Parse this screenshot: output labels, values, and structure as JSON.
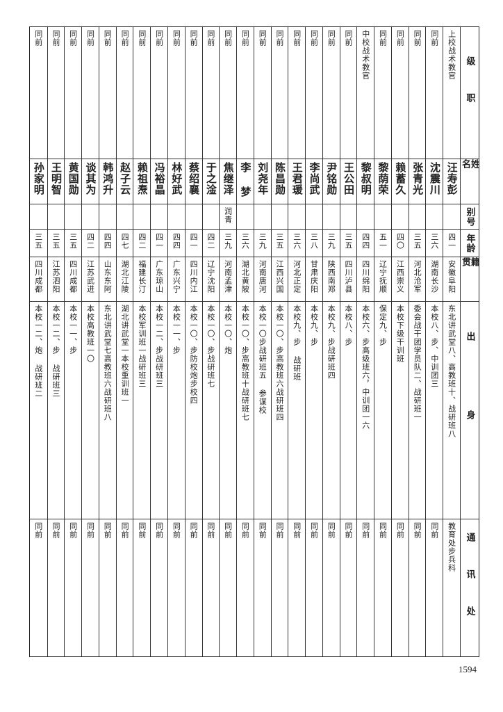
{
  "headers": {
    "rank": "级职",
    "name": "姓名",
    "alias": "别号",
    "age": "年龄",
    "native": "籍贯",
    "background": "出身",
    "address": "通讯处"
  },
  "rows": [
    {
      "rank": "上校战术教官",
      "name": "汪寿彭",
      "alias": "",
      "age": "四一",
      "native": "安徽阜阳",
      "background": "东北讲武堂八、高教班十、战研班八",
      "address": "教育处步兵科"
    },
    {
      "rank": "同前",
      "name": "沈震川",
      "alias": "",
      "age": "三六",
      "native": "湖南长沙",
      "background": "本校八、步、中训团三",
      "address": "同前"
    },
    {
      "rank": "同前",
      "name": "张青光",
      "alias": "",
      "age": "三五",
      "native": "河北沧军",
      "background": "委会战干团学员队二、战研班一",
      "address": "同前"
    },
    {
      "rank": "同前",
      "name": "赖蓄久",
      "alias": "",
      "age": "四〇",
      "native": "江西崇义",
      "background": "本校下级干训班",
      "address": "同前"
    },
    {
      "rank": "同前",
      "name": "黎荫荣",
      "alias": "",
      "age": "五一",
      "native": "辽宁抚顺",
      "background": "保定九、步",
      "address": "同前"
    },
    {
      "rank": "中校战术教官",
      "name": "黎叔明",
      "alias": "",
      "age": "四四",
      "native": "四川绵阳",
      "background": "本校六、步高级班六，中训团一六",
      "address": "同前"
    },
    {
      "rank": "同前",
      "name": "王公田",
      "alias": "",
      "age": "三五",
      "native": "四川泸县",
      "background": "本校八、步",
      "address": "同前"
    },
    {
      "rank": "同前",
      "name": "尹铭勋",
      "alias": "",
      "age": "三九",
      "native": "陕西南郑",
      "background": "本校九、步战研班四",
      "address": "同前"
    },
    {
      "rank": "同前",
      "name": "李尚武",
      "alias": "",
      "age": "三八",
      "native": "甘肃庆阳",
      "background": "本校九、步",
      "address": "同前"
    },
    {
      "rank": "同前",
      "name": "王君瑗",
      "alias": "",
      "age": "三六",
      "native": "河北正定",
      "background": "本校九、步 战研班",
      "address": "同前"
    },
    {
      "rank": "同前",
      "name": "陈昌勋",
      "alias": "",
      "age": "三五",
      "native": "江西兴国",
      "background": "本校一〇、步高教班六战研班四",
      "address": "同前"
    },
    {
      "rank": "同前",
      "name": "刘尧年",
      "alias": "",
      "age": "三九",
      "native": "河南唐河",
      "background": "本校一〇步战研班五 参谋校",
      "address": "同前"
    },
    {
      "rank": "同前",
      "name": "李 梦",
      "alias": "",
      "age": "三六",
      "native": "湖北黄陂",
      "background": "本校一〇、步高教班十战研班七",
      "address": "同前"
    },
    {
      "rank": "同前",
      "name": "焦继泽",
      "alias": "润青",
      "age": "三九",
      "native": "河南孟津",
      "background": "本校一〇、炮",
      "address": "同前"
    },
    {
      "rank": "同前",
      "name": "于之淦",
      "alias": "",
      "age": "四二",
      "native": "辽宁沈阳",
      "background": "本校一〇、步战研班七",
      "address": "同前"
    },
    {
      "rank": "同前",
      "name": "蔡绍襄",
      "alias": "",
      "age": "四一",
      "native": "四川内江",
      "background": "本校一〇、步防校炮步校四",
      "address": "同前"
    },
    {
      "rank": "同前",
      "name": "林好武",
      "alias": "",
      "age": "四四",
      "native": "广东兴宁",
      "background": "本校一一、步",
      "address": "同前"
    },
    {
      "rank": "同前",
      "name": "冯裕晶",
      "alias": "",
      "age": "四一",
      "native": "广东琼山",
      "background": "本校一二、步战研班三",
      "address": "同前"
    },
    {
      "rank": "同前",
      "name": "赖祖焘",
      "alias": "",
      "age": "四二",
      "native": "福建长汀",
      "background": "本校军训班一战研班三",
      "address": "同前"
    },
    {
      "rank": "同前",
      "name": "赵子云",
      "alias": "",
      "age": "四七",
      "native": "湖北江陵",
      "background": "湖北讲武堂一本校重训班一",
      "address": "同前"
    },
    {
      "rank": "同前",
      "name": "韩鸿升",
      "alias": "",
      "age": "四四",
      "native": "山东东阿",
      "background": "东北讲武堂七高教班六战研班八",
      "address": "同前"
    },
    {
      "rank": "同前",
      "name": "谈其为",
      "alias": "",
      "age": "四二",
      "native": "江苏武进",
      "background": "本校高教班一〇",
      "address": "同前"
    },
    {
      "rank": "同前",
      "name": "黄国勋",
      "alias": "",
      "age": "三五",
      "native": "四川成都",
      "background": "本校一一、步",
      "address": "同前"
    },
    {
      "rank": "同前",
      "name": "王明智",
      "alias": "",
      "age": "三五",
      "native": "江苏泗阳",
      "background": "本校一二、步 战研班三",
      "address": "同前"
    },
    {
      "rank": "同前",
      "name": "孙家明",
      "alias": "",
      "age": "三五",
      "native": "四川成都",
      "background": "本校一二、炮 战研班二",
      "address": "同前"
    }
  ],
  "page_number": "1594"
}
